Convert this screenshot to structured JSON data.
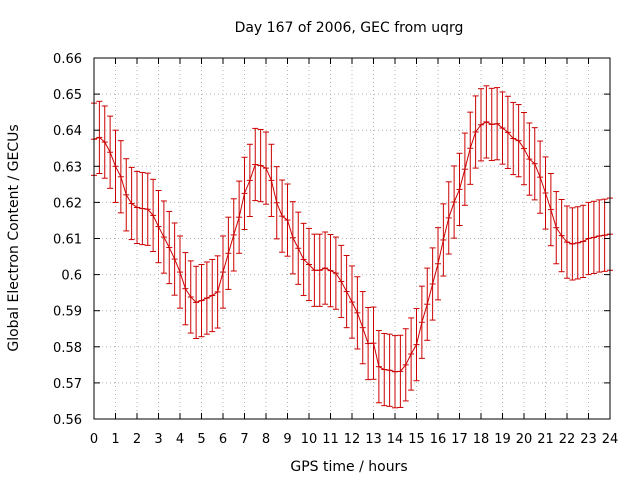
{
  "chart_data": {
    "type": "line",
    "title": "Day 167 of 2006, GEC from uqrg",
    "xlabel": "GPS time / hours",
    "ylabel": "Global Electron Content / GECUs",
    "xlim": [
      0,
      24
    ],
    "ylim": [
      0.56,
      0.66
    ],
    "xticks": [
      "0",
      "1",
      "2",
      "3",
      "4",
      "5",
      "6",
      "7",
      "8",
      "9",
      "10",
      "11",
      "12",
      "13",
      "14",
      "15",
      "16",
      "17",
      "18",
      "19",
      "20",
      "21",
      "22",
      "23",
      "24"
    ],
    "yticks": [
      "0.56",
      "0.57",
      "0.58",
      "0.59",
      "0.6",
      "0.61",
      "0.62",
      "0.63",
      "0.64",
      "0.65",
      "0.66"
    ],
    "grid": true,
    "error_bar": 0.01,
    "series_color": "#cc0000",
    "series": [
      {
        "name": "GEC",
        "x": [
          0,
          0.25,
          0.5,
          0.75,
          1,
          1.25,
          1.5,
          1.75,
          2,
          2.25,
          2.5,
          2.75,
          3,
          3.25,
          3.5,
          3.75,
          4,
          4.25,
          4.5,
          4.75,
          5,
          5.25,
          5.5,
          5.75,
          6,
          6.25,
          6.5,
          6.75,
          7,
          7.25,
          7.5,
          7.75,
          8,
          8.25,
          8.5,
          8.75,
          9,
          9.25,
          9.5,
          9.75,
          10,
          10.25,
          10.5,
          10.75,
          11,
          11.25,
          11.5,
          11.75,
          12,
          12.25,
          12.5,
          12.75,
          13,
          13.25,
          13.5,
          13.75,
          14,
          14.25,
          14.5,
          14.75,
          15,
          15.25,
          15.5,
          15.75,
          16,
          16.25,
          16.5,
          16.75,
          17,
          17.25,
          17.5,
          17.75,
          18,
          18.25,
          18.5,
          18.75,
          19,
          19.25,
          19.5,
          19.75,
          20,
          20.25,
          20.5,
          20.75,
          21,
          21.25,
          21.5,
          21.75,
          22,
          22.25,
          22.5,
          22.75,
          23,
          23.25,
          23.5,
          23.75,
          24
        ],
        "y": [
          0.6375,
          0.638,
          0.6367,
          0.6339,
          0.63,
          0.6271,
          0.6221,
          0.6197,
          0.6186,
          0.6183,
          0.6181,
          0.6164,
          0.6133,
          0.6104,
          0.6075,
          0.6043,
          0.6007,
          0.5961,
          0.5938,
          0.5923,
          0.5928,
          0.5935,
          0.5942,
          0.5952,
          0.6007,
          0.6059,
          0.611,
          0.6159,
          0.6225,
          0.6261,
          0.6305,
          0.6302,
          0.6295,
          0.6261,
          0.6199,
          0.6162,
          0.6151,
          0.6102,
          0.6073,
          0.6042,
          0.6028,
          0.6012,
          0.6012,
          0.6018,
          0.6011,
          0.6004,
          0.5981,
          0.5953,
          0.5924,
          0.5894,
          0.5853,
          0.5809,
          0.581,
          0.5745,
          0.5737,
          0.5735,
          0.5731,
          0.5732,
          0.575,
          0.578,
          0.5806,
          0.5868,
          0.5918,
          0.5974,
          0.603,
          0.6096,
          0.6157,
          0.6201,
          0.6236,
          0.6292,
          0.635,
          0.6395,
          0.6415,
          0.6423,
          0.6416,
          0.6418,
          0.6406,
          0.6394,
          0.6377,
          0.6371,
          0.6349,
          0.632,
          0.6307,
          0.627,
          0.6226,
          0.618,
          0.613,
          0.6108,
          0.609,
          0.6085,
          0.6088,
          0.6092,
          0.61,
          0.6103,
          0.6107,
          0.6109,
          0.6112
        ]
      }
    ]
  }
}
